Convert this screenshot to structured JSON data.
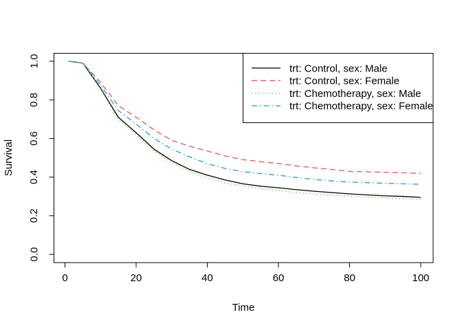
{
  "figure": {
    "background": "#ffffff",
    "frame_color": "#000000"
  },
  "chart_data": {
    "type": "line",
    "title": "",
    "xlabel": "Time",
    "ylabel": "Survival",
    "xlim": [
      0,
      100
    ],
    "ylim": [
      0.0,
      1.0
    ],
    "x_ticks": [
      0,
      20,
      40,
      60,
      80,
      100
    ],
    "y_ticks": [
      "0.0",
      "0.2",
      "0.4",
      "0.6",
      "0.8",
      "1.0"
    ],
    "grid": false,
    "legend_position": "topright",
    "legend_border": true,
    "x": [
      1,
      5,
      10,
      15,
      20,
      25,
      30,
      35,
      40,
      45,
      50,
      55,
      60,
      65,
      70,
      75,
      80,
      85,
      90,
      95,
      100
    ],
    "series": [
      {
        "name": "trt: Control, sex: Male",
        "color": "#000000",
        "linetype": "solid",
        "values": [
          1.0,
          0.99,
          0.86,
          0.71,
          0.63,
          0.545,
          0.485,
          0.44,
          0.41,
          0.385,
          0.365,
          0.353,
          0.345,
          0.335,
          0.327,
          0.32,
          0.313,
          0.308,
          0.303,
          0.3,
          0.295
        ]
      },
      {
        "name": "trt: Control, sex: Female",
        "color": "#DF536B",
        "linetype": "dashed",
        "values": [
          1.0,
          0.99,
          0.89,
          0.77,
          0.71,
          0.645,
          0.59,
          0.56,
          0.535,
          0.51,
          0.49,
          0.48,
          0.47,
          0.458,
          0.448,
          0.44,
          0.43,
          0.427,
          0.425,
          0.422,
          0.42
        ]
      },
      {
        "name": "trt: Chemotherapy, sex: Male",
        "color": "#61D04F",
        "linetype": "dotted",
        "values": [
          1.0,
          0.99,
          0.855,
          0.7,
          0.62,
          0.535,
          0.475,
          0.43,
          0.395,
          0.37,
          0.353,
          0.34,
          0.33,
          0.32,
          0.312,
          0.306,
          0.3,
          0.296,
          0.292,
          0.288,
          0.285
        ]
      },
      {
        "name": "trt: Chemotherapy, sex: Female",
        "color": "#2297E6",
        "linetype": "dashdot",
        "values": [
          1.0,
          0.99,
          0.875,
          0.745,
          0.675,
          0.6,
          0.545,
          0.505,
          0.47,
          0.445,
          0.428,
          0.418,
          0.41,
          0.398,
          0.388,
          0.38,
          0.374,
          0.371,
          0.368,
          0.365,
          0.363
        ]
      }
    ]
  }
}
